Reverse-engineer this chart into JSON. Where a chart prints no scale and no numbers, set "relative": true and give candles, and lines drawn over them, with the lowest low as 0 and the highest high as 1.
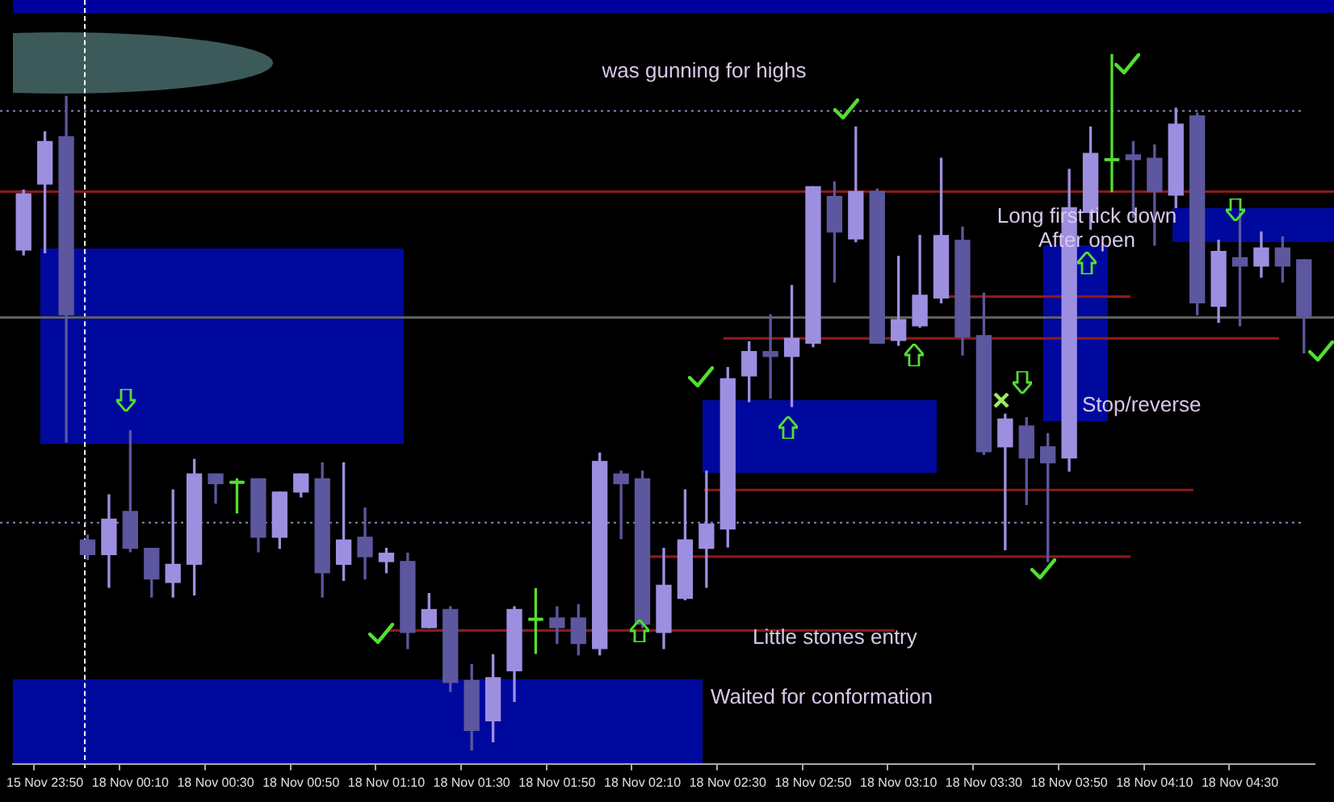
{
  "chart_data": {
    "type": "candlestick",
    "relative": true,
    "categories": [
      null,
      "15 Nov 23:50",
      null,
      null,
      null,
      "18 Nov 00:10",
      null,
      null,
      null,
      "18 Nov 00:30",
      null,
      null,
      null,
      "18 Nov 00:50",
      null,
      null,
      null,
      "18 Nov 01:10",
      null,
      null,
      null,
      "18 Nov 01:30",
      null,
      null,
      null,
      "18 Nov 01:50",
      null,
      null,
      null,
      "18 Nov 02:10",
      null,
      null,
      null,
      "18 Nov 02:30",
      null,
      null,
      null,
      "18 Nov 02:50",
      null,
      null,
      null,
      "18 Nov 03:10",
      null,
      null,
      null,
      "18 Nov 03:30",
      null,
      null,
      null,
      "18 Nov 03:50",
      null,
      null,
      null,
      "18 Nov 04:10",
      null,
      null,
      null,
      "18 Nov 04:30",
      null,
      null,
      null
    ],
    "ohlc": [
      [
        0.719,
        0.805,
        0.712,
        0.8
      ],
      [
        0.814,
        0.889,
        0.715,
        0.875
      ],
      [
        0.882,
        0.94,
        0.443,
        0.626
      ],
      [
        0.302,
        0.309,
        0.274,
        0.281
      ],
      [
        0.281,
        0.367,
        0.234,
        0.332
      ],
      [
        0.343,
        0.459,
        0.285,
        0.29
      ],
      [
        0.29,
        0.29,
        0.22,
        0.246
      ],
      [
        0.241,
        0.374,
        0.22,
        0.267
      ],
      [
        0.267,
        0.418,
        0.223,
        0.397
      ],
      [
        0.397,
        0.397,
        0.355,
        0.383
      ],
      [
        0.385,
        0.39,
        0.341,
        0.385
      ],
      [
        0.39,
        0.39,
        0.285,
        0.306
      ],
      [
        0.306,
        0.371,
        0.29,
        0.371
      ],
      [
        0.371,
        0.397,
        0.364,
        0.397
      ],
      [
        0.39,
        0.413,
        0.22,
        0.255
      ],
      [
        0.267,
        0.413,
        0.244,
        0.302
      ],
      [
        0.306,
        0.348,
        0.246,
        0.278
      ],
      [
        0.271,
        0.29,
        0.255,
        0.283
      ],
      [
        0.271,
        0.283,
        0.146,
        0.169
      ],
      [
        0.176,
        0.225,
        0.176,
        0.202
      ],
      [
        0.202,
        0.206,
        0.084,
        0.097
      ],
      [
        0.1,
        0.123,
        0,
        0.028
      ],
      [
        0.042,
        0.137,
        0.012,
        0.104
      ],
      [
        0.114,
        0.206,
        0.07,
        0.202
      ],
      [
        0.188,
        0.232,
        0.139,
        0.188
      ],
      [
        0.19,
        0.206,
        0.153,
        0.176
      ],
      [
        0.19,
        0.209,
        0.137,
        0.153
      ],
      [
        0.146,
        0.427,
        0.137,
        0.415
      ],
      [
        0.397,
        0.401,
        0.304,
        0.383
      ],
      [
        0.39,
        0.401,
        0.176,
        0.181
      ],
      [
        0.169,
        0.29,
        0.146,
        0.237
      ],
      [
        0.218,
        0.374,
        0.216,
        0.302
      ],
      [
        0.29,
        0.401,
        0.234,
        0.325
      ],
      [
        0.318,
        0.55,
        0.292,
        0.534
      ],
      [
        0.538,
        0.587,
        0.501,
        0.573
      ],
      [
        0.573,
        0.626,
        0.506,
        0.566
      ],
      [
        0.566,
        0.668,
        0.494,
        0.592
      ],
      [
        0.585,
        0.81,
        0.58,
        0.81
      ],
      [
        0.796,
        0.817,
        0.673,
        0.745
      ],
      [
        0.735,
        0.896,
        0.731,
        0.803
      ],
      [
        0.803,
        0.807,
        0.585,
        0.585
      ],
      [
        0.589,
        0.71,
        0.582,
        0.619
      ],
      [
        0.61,
        0.74,
        0.608,
        0.654
      ],
      [
        0.65,
        0.851,
        0.643,
        0.74
      ],
      [
        0.733,
        0.752,
        0.568,
        0.594
      ],
      [
        0.596,
        0.657,
        0.425,
        0.429
      ],
      [
        0.436,
        0.483,
        0.288,
        0.476
      ],
      [
        0.466,
        0.478,
        0.353,
        0.42
      ],
      [
        0.436,
        0.455,
        0.271,
        0.413
      ],
      [
        0.42,
        0.835,
        0.401,
        0.78
      ],
      [
        0.773,
        0.896,
        0.749,
        0.858
      ],
      [
        0.849,
        1,
        0.803,
        0.849
      ],
      [
        0.856,
        0.875,
        0.766,
        0.849
      ],
      [
        0.851,
        0.87,
        0.726,
        0.803
      ],
      [
        0.798,
        0.923,
        0.78,
        0.9
      ],
      [
        0.912,
        0.916,
        0.626,
        0.643
      ],
      [
        0.638,
        0.733,
        0.615,
        0.717
      ],
      [
        0.708,
        0.773,
        0.61,
        0.696
      ],
      [
        0.696,
        0.745,
        0.68,
        0.722
      ],
      [
        0.722,
        0.738,
        0.673,
        0.696
      ],
      [
        0.705,
        0.705,
        0.571,
        0.624
      ]
    ],
    "colors": [
      "#9d8fe0",
      "#9d8fe0",
      "#5c579e",
      "#5c579e",
      "#9d8fe0",
      "#5c579e",
      "#5c579e",
      "#9d8fe0",
      "#9d8fe0",
      "#5c579e",
      "#55dd33",
      "#5c579e",
      "#9d8fe0",
      "#9d8fe0",
      "#5c579e",
      "#9d8fe0",
      "#5c579e",
      "#9d8fe0",
      "#5c579e",
      "#9d8fe0",
      "#5c579e",
      "#5c579e",
      "#9d8fe0",
      "#9d8fe0",
      "#55dd33",
      "#5c579e",
      "#5c579e",
      "#9d8fe0",
      "#5c579e",
      "#5c579e",
      "#9d8fe0",
      "#9d8fe0",
      "#9d8fe0",
      "#9d8fe0",
      "#9d8fe0",
      "#5c579e",
      "#9d8fe0",
      "#9d8fe0",
      "#5c579e",
      "#9d8fe0",
      "#5c579e",
      "#9d8fe0",
      "#9d8fe0",
      "#9d8fe0",
      "#5c579e",
      "#5c579e",
      "#9d8fe0",
      "#5c579e",
      "#5c579e",
      "#9d8fe0",
      "#9d8fe0",
      "#55dd33",
      "#5c579e",
      "#5c579e",
      "#9d8fe0",
      "#5c579e",
      "#9d8fe0",
      "#5c579e",
      "#9d8fe0",
      "#5c579e",
      "#5c579e"
    ],
    "ref_lines": [
      {
        "axis": "y",
        "value": 0.803,
        "color": "#8b1a1a"
      },
      {
        "axis": "y",
        "value": 0.652,
        "color": "#8b1a1a"
      },
      {
        "axis": "y",
        "value": 0.592,
        "color": "#8b1a1a"
      },
      {
        "axis": "y",
        "value": 0.374,
        "color": "#8b1a1a"
      },
      {
        "axis": "y",
        "value": 0.278,
        "color": "#8b1a1a"
      },
      {
        "axis": "y",
        "value": 0.172,
        "color": "#8b1a1a"
      },
      {
        "axis": "y",
        "value": 0.919,
        "color": "#8888bb",
        "line_style": "dotted"
      },
      {
        "axis": "y",
        "value": 0.327,
        "color": "#8888bb",
        "line_style": "dotted"
      },
      {
        "axis": "y",
        "value": 0.622,
        "color": "#606060"
      }
    ],
    "annotations": [
      "was gunning for highs",
      "Long first tick down\nAfter open",
      "Stop/reverse",
      "Little stones entry",
      "Waited for conformation"
    ]
  }
}
